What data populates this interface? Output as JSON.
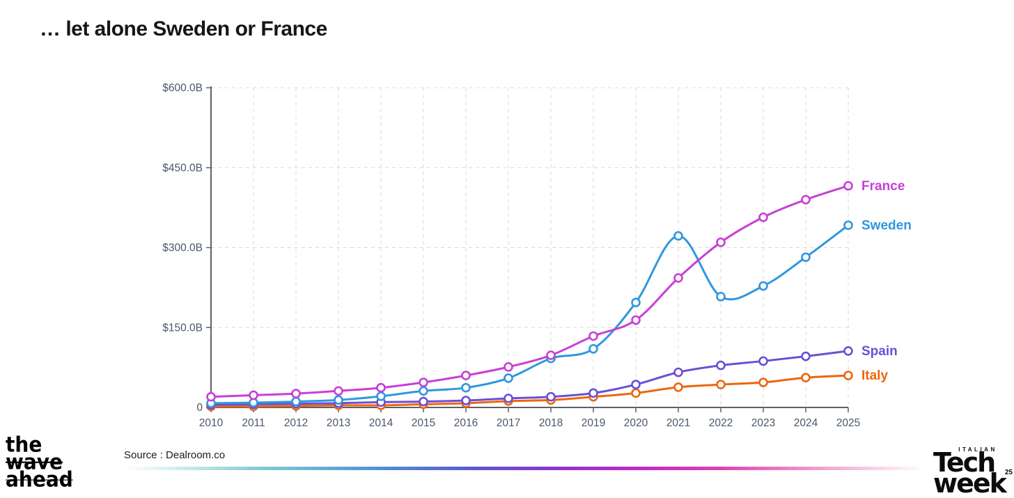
{
  "title": "… let alone Sweden or France",
  "source_label": "Source : Dealroom.co",
  "logos": {
    "wave_lines": {
      "0": "the",
      "1": "wave",
      "2": "ahead"
    },
    "tech_week": {
      "top": "ITALIAN",
      "line1": "Tech",
      "line2": "week",
      "year": "25"
    }
  },
  "chart_data": {
    "type": "line",
    "title": "",
    "xlabel": "",
    "ylabel": "",
    "x": [
      2010,
      2011,
      2012,
      2013,
      2014,
      2015,
      2016,
      2017,
      2018,
      2019,
      2020,
      2021,
      2022,
      2023,
      2024,
      2025
    ],
    "series": [
      {
        "name": "France",
        "color": "#c73fd6",
        "values": [
          20,
          23,
          26,
          31,
          37,
          47,
          60,
          76,
          98,
          134,
          164,
          243,
          310,
          357,
          390,
          416
        ]
      },
      {
        "name": "Sweden",
        "color": "#2f97de",
        "values": [
          8,
          9,
          11,
          14,
          21,
          31,
          37,
          55,
          92,
          110,
          197,
          322,
          208,
          228,
          282,
          342
        ]
      },
      {
        "name": "Spain",
        "color": "#6b4fd6",
        "values": [
          5,
          6,
          7,
          8,
          10,
          11,
          13,
          17,
          20,
          27,
          43,
          66,
          79,
          87,
          96,
          106
        ]
      },
      {
        "name": "Italy",
        "color": "#ec660e",
        "values": [
          2,
          2,
          3,
          4,
          4,
          6,
          8,
          12,
          14,
          20,
          27,
          38,
          43,
          47,
          56,
          60
        ]
      }
    ],
    "draw_order": [
      3,
      2,
      1,
      0
    ],
    "ylim": [
      0,
      600
    ],
    "yticks": [
      {
        "value": 0,
        "label": "0"
      },
      {
        "value": 150,
        "label": "$150.0B"
      },
      {
        "value": 300,
        "label": "$300.0B"
      },
      {
        "value": 450,
        "label": "$450.0B"
      },
      {
        "value": 600,
        "label": "$600.0B"
      }
    ],
    "grid": true,
    "legend_position": "right-of-line-end",
    "colors": {
      "grid": "#d9d9d9",
      "axis": "#5b606b",
      "tick_text": "#4a566b"
    }
  },
  "footer_gradient_stops": [
    "#ffffff 0%",
    "#cdecee 7%",
    "#82cbd3 17%",
    "#4f90d5 32%",
    "#5b55d5 44%",
    "#8c33d8 54%",
    "#c326c9 64%",
    "#e23eb0 74%",
    "#f0a2cf 87%",
    "#ffffff 100%"
  ]
}
